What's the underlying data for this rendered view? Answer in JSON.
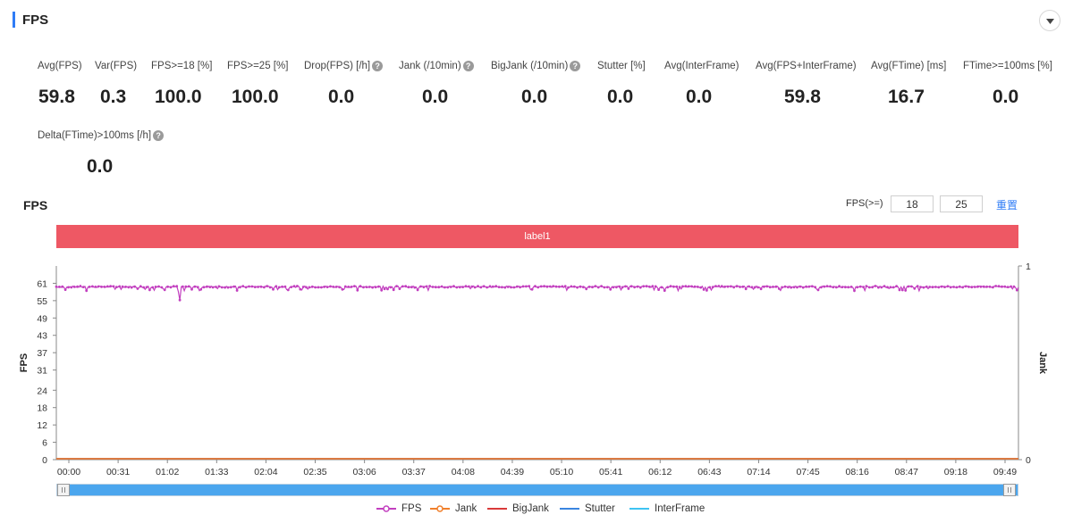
{
  "header": {
    "title": "FPS"
  },
  "metrics": [
    {
      "label": "Avg(FPS)",
      "value": "59.8",
      "help": false
    },
    {
      "label": "Var(FPS)",
      "value": "0.3",
      "help": false
    },
    {
      "label": "FPS>=18 [%]",
      "value": "100.0",
      "help": false
    },
    {
      "label": "FPS>=25 [%]",
      "value": "100.0",
      "help": false
    },
    {
      "label": "Drop(FPS) [/h]",
      "value": "0.0",
      "help": true
    },
    {
      "label": "Jank (/10min)",
      "value": "0.0",
      "help": true
    },
    {
      "label": "BigJank (/10min)",
      "value": "0.0",
      "help": true
    },
    {
      "label": "Stutter [%]",
      "value": "0.0",
      "help": false
    },
    {
      "label": "Avg(InterFrame)",
      "value": "0.0",
      "help": false
    },
    {
      "label": "Avg(FPS+InterFrame)",
      "value": "59.8",
      "help": false
    },
    {
      "label": "Avg(FTime) [ms]",
      "value": "16.7",
      "help": false
    },
    {
      "label": "FTime>=100ms [%]",
      "value": "0.0",
      "help": false
    },
    {
      "label": "Delta(FTime)>100ms [/h]",
      "value": "0.0",
      "help": true
    }
  ],
  "chart_section": {
    "title": "FPS",
    "threshold_label": "FPS(>=)",
    "threshold_1": "18",
    "threshold_2": "25",
    "reset_label": "重置",
    "label_bar": "label1"
  },
  "icons": {
    "collapse": "chevron-down-icon",
    "help": "question-circle-icon"
  },
  "colors": {
    "accent": "#2f7cf6",
    "label_bar": "#ee5864",
    "fps": "#c23fbf",
    "jank": "#f07f2b",
    "bigjank": "#d93a3a",
    "stutter": "#3a85e0",
    "interframe": "#3ec3f2"
  },
  "chart_data": {
    "type": "line",
    "x_tick_labels": [
      "00:00",
      "00:31",
      "01:02",
      "01:33",
      "02:04",
      "02:35",
      "03:06",
      "03:37",
      "04:08",
      "04:39",
      "05:10",
      "05:41",
      "06:12",
      "06:43",
      "07:14",
      "07:45",
      "08:16",
      "08:47",
      "09:18",
      "09:49"
    ],
    "ylabel": "FPS",
    "y2label": "Jank",
    "y_ticks": [
      0,
      6,
      12,
      18,
      24,
      31,
      37,
      43,
      49,
      55,
      61
    ],
    "ylim": [
      0,
      67
    ],
    "y2_ticks": [
      0,
      1
    ],
    "y2lim": [
      0,
      1
    ],
    "series": [
      {
        "name": "FPS",
        "axis": "left",
        "approx_value": 59.8,
        "dips": [
          [
            82,
            55.2
          ],
          [
            81,
            58.2
          ],
          [
            120,
            58.5
          ],
          [
            200,
            58.6
          ],
          [
            240,
            58.7
          ],
          [
            315,
            58.8
          ],
          [
            400,
            58.8
          ],
          [
            505,
            58.9
          ],
          [
            560,
            58.7
          ]
        ]
      },
      {
        "name": "Jank",
        "axis": "right",
        "approx_value": 0
      },
      {
        "name": "BigJank",
        "axis": "right",
        "approx_value": 0
      },
      {
        "name": "Stutter",
        "axis": "right",
        "approx_value": 0
      },
      {
        "name": "InterFrame",
        "axis": "right",
        "approx_value": 0
      }
    ],
    "legend_position": "bottom-center",
    "grid": false
  },
  "legend": [
    "FPS",
    "Jank",
    "BigJank",
    "Stutter",
    "InterFrame"
  ]
}
